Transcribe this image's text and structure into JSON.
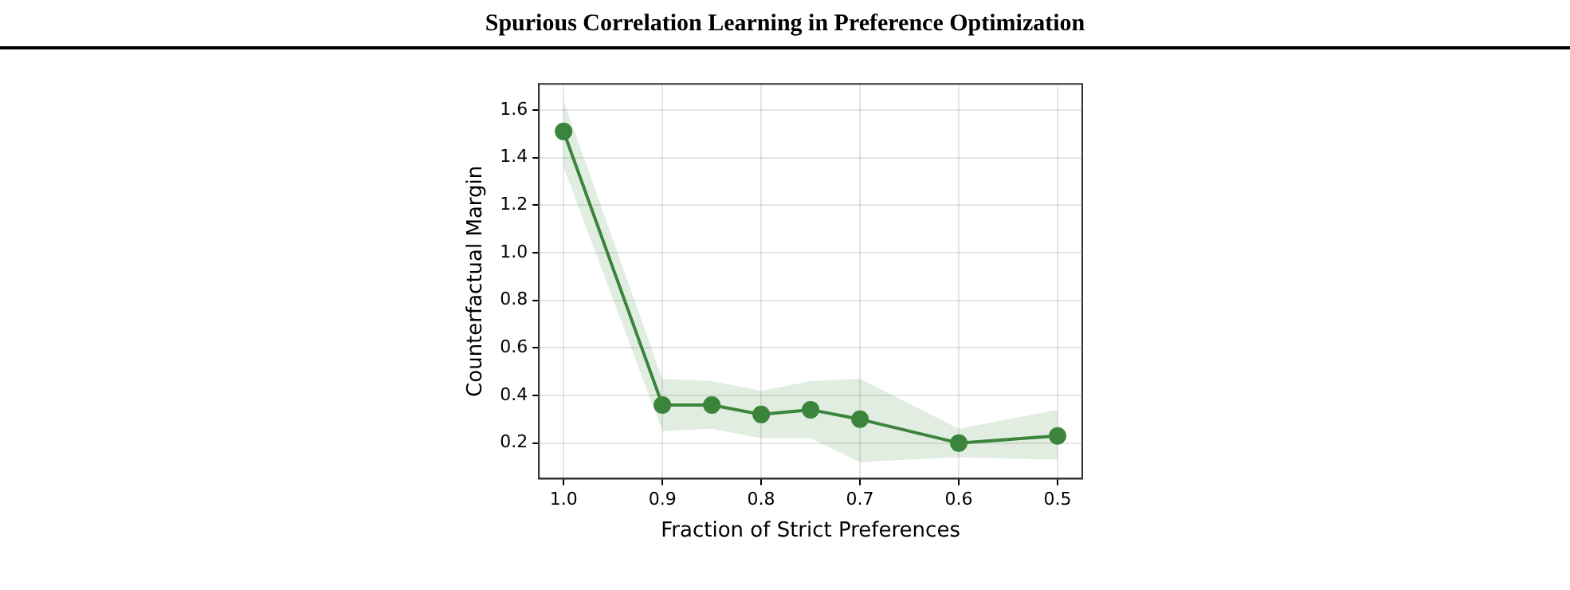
{
  "chart_data": {
    "type": "line",
    "title": "Spurious Correlation Learning in Preference Optimization",
    "xlabel": "Fraction of Strict Preferences",
    "ylabel": "Counterfactual Margin",
    "x": [
      1.0,
      0.9,
      0.85,
      0.8,
      0.75,
      0.7,
      0.6,
      0.5
    ],
    "series": [
      {
        "color": "#3a843c",
        "values": [
          1.51,
          0.36,
          0.36,
          0.32,
          0.34,
          0.3,
          0.2,
          0.23
        ],
        "lower": [
          1.36,
          0.25,
          0.26,
          0.22,
          0.22,
          0.12,
          0.14,
          0.13
        ],
        "upper": [
          1.64,
          0.47,
          0.46,
          0.42,
          0.46,
          0.47,
          0.26,
          0.34
        ]
      }
    ],
    "xlim": [
      1.025,
      0.475
    ],
    "xticks": [
      {
        "value": 1.0,
        "label": "1.0"
      },
      0.9,
      0.8,
      0.7,
      0.6,
      0.5
    ],
    "ylim": [
      0.05,
      1.71
    ],
    "yticks": [
      0.2,
      0.4,
      0.6,
      0.8,
      {
        "value": 1.0,
        "label": "1.0"
      },
      1.2,
      1.4,
      1.6
    ],
    "grid": true,
    "legend": false,
    "marker": "circle",
    "line_style": "solid"
  }
}
